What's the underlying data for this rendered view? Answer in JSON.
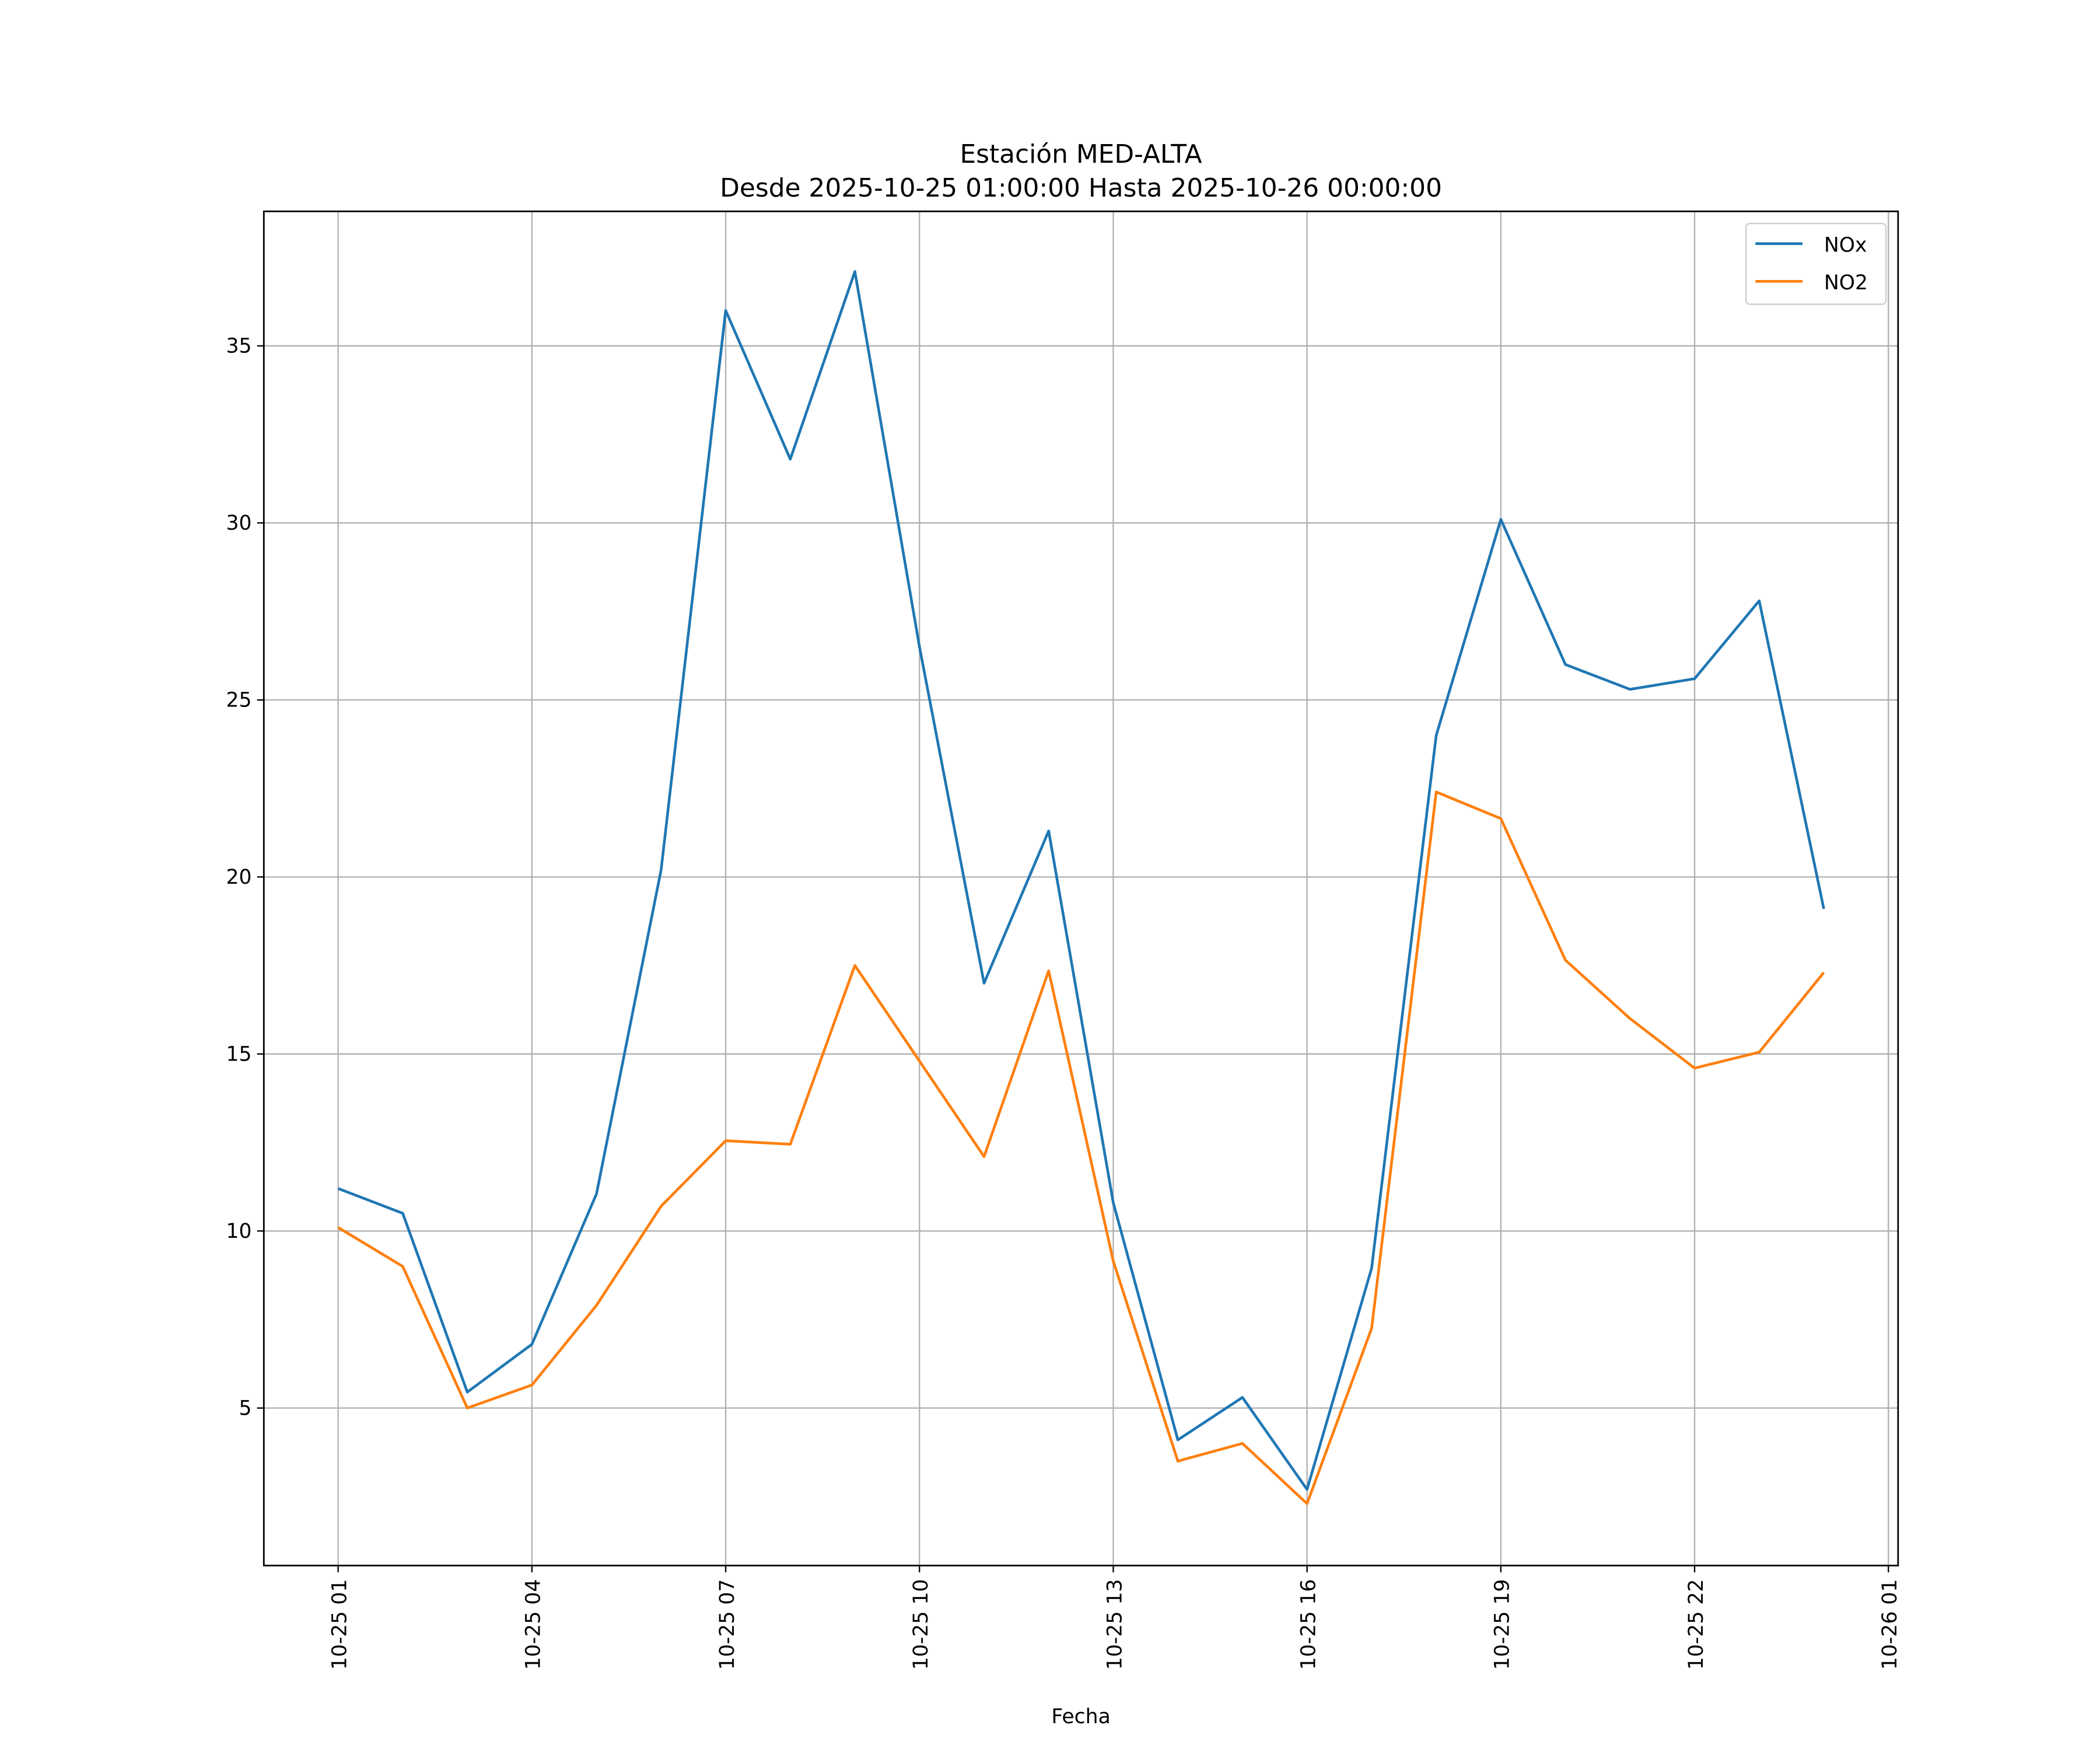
{
  "chart_data": {
    "type": "line",
    "title": "Estación MED-ALTA",
    "subtitle": "Desde 2025-10-25 01:00:00 Hasta 2025-10-26 00:00:00",
    "xlabel": "Fecha",
    "ylabel": "",
    "x_hours_from_start": [
      0,
      1,
      2,
      3,
      4,
      5,
      6,
      7,
      8,
      9,
      10,
      11,
      12,
      13,
      14,
      15,
      16,
      17,
      18,
      19,
      20,
      21,
      22,
      23
    ],
    "x": [
      "10-25 01",
      "10-25 02",
      "10-25 03",
      "10-25 04",
      "10-25 05",
      "10-25 06",
      "10-25 07",
      "10-25 08",
      "10-25 09",
      "10-25 10",
      "10-25 11",
      "10-25 12",
      "10-25 13",
      "10-25 14",
      "10-25 15",
      "10-25 16",
      "10-25 17",
      "10-25 18",
      "10-25 19",
      "10-25 20",
      "10-25 21",
      "10-25 22",
      "10-25 23",
      "10-26 00"
    ],
    "series": [
      {
        "name": "NOx",
        "color": "#1f77b4",
        "values": [
          11.2,
          10.5,
          5.45,
          6.8,
          11.05,
          20.2,
          36.0,
          31.8,
          37.1,
          26.5,
          17.0,
          21.3,
          10.8,
          4.1,
          5.3,
          2.7,
          8.95,
          24.0,
          30.1,
          26.0,
          25.3,
          25.6,
          27.8,
          19.1
        ]
      },
      {
        "name": "NO2",
        "color": "#ff7f0e",
        "values": [
          10.1,
          9.0,
          5.0,
          5.65,
          7.9,
          10.7,
          12.55,
          12.45,
          17.5,
          14.8,
          12.1,
          17.35,
          9.15,
          3.5,
          4.0,
          2.3,
          7.25,
          22.4,
          21.65,
          17.65,
          16.0,
          14.6,
          15.05,
          17.3
        ]
      }
    ],
    "xticks": [
      {
        "label": "10-25 01",
        "hour": 0
      },
      {
        "label": "10-25 04",
        "hour": 3
      },
      {
        "label": "10-25 07",
        "hour": 6
      },
      {
        "label": "10-25 10",
        "hour": 9
      },
      {
        "label": "10-25 13",
        "hour": 12
      },
      {
        "label": "10-25 16",
        "hour": 15
      },
      {
        "label": "10-25 19",
        "hour": 18
      },
      {
        "label": "10-25 22",
        "hour": 21
      },
      {
        "label": "10-26 01",
        "hour": 24
      }
    ],
    "yticks": [
      5,
      10,
      15,
      20,
      25,
      30,
      35
    ],
    "xlim": [
      -1.15,
      24.15
    ],
    "ylim": [
      0.55,
      38.8
    ],
    "grid": true,
    "legend": "top-right"
  }
}
